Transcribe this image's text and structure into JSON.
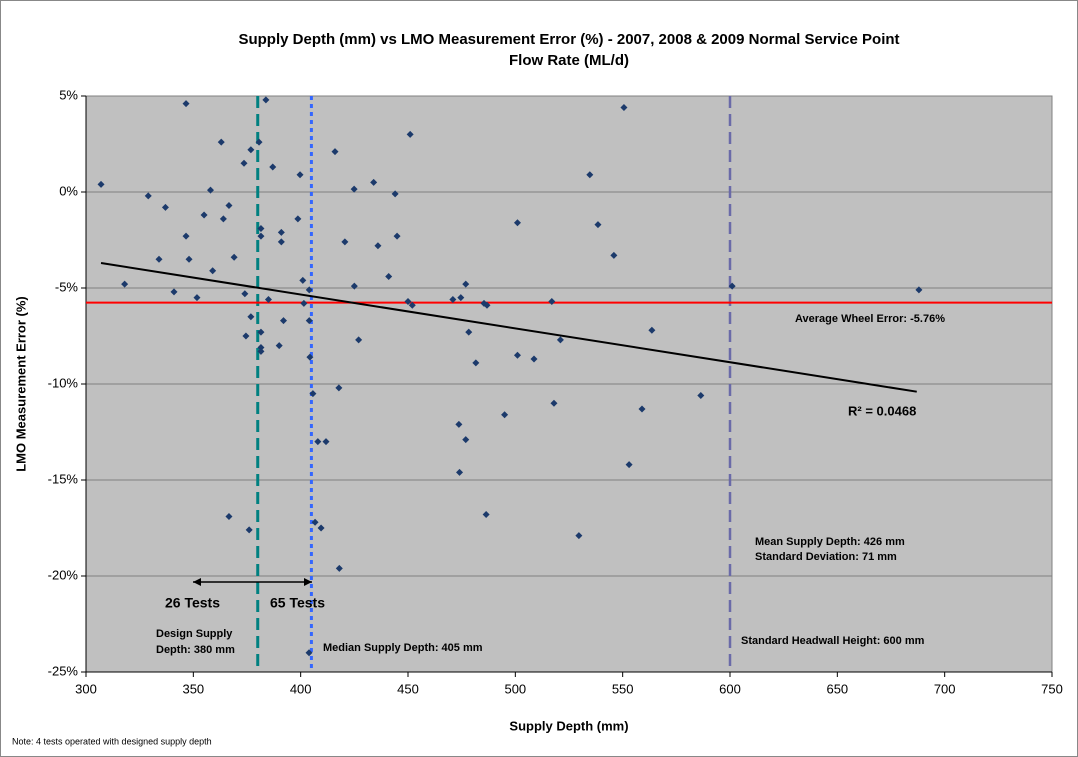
{
  "chart_data": {
    "type": "scatter",
    "title": [
      "Supply Depth (mm) vs LMO Measurement Error (%) - 2007, 2008 & 2009 Normal Service Point",
      "Flow Rate (ML/d)"
    ],
    "x_label": "Supply Depth (mm)",
    "y_label": "LMO Measurement Error (%)",
    "xlim": [
      300,
      750
    ],
    "xticks": [
      300,
      350,
      400,
      450,
      500,
      550,
      600,
      650,
      700,
      750
    ],
    "ylim": [
      -25,
      5
    ],
    "yticks": [
      {
        "value": -25,
        "label": "-25%"
      },
      {
        "value": -20,
        "label": "-20%"
      },
      {
        "value": -15,
        "label": "-15%"
      },
      {
        "value": -10,
        "label": "-10%"
      },
      {
        "value": -5,
        "label": "-5%"
      },
      {
        "value": 0,
        "label": "0%"
      },
      {
        "value": 5,
        "label": "5%"
      }
    ],
    "grid": true,
    "series": [
      {
        "color": "#1c3a6b",
        "x": [
          307,
          318,
          329,
          337,
          334,
          341,
          346.6,
          346.6,
          348,
          351.7,
          355,
          358,
          359,
          363,
          364,
          366.6,
          369,
          366.6,
          373.6,
          374,
          374.5,
          376.8,
          376.8,
          376,
          380.6,
          381.5,
          381.5,
          381.5,
          381.5,
          381.5,
          383.8,
          385,
          387,
          390,
          391,
          391,
          392,
          398.7,
          399.7,
          401,
          401.5,
          404,
          404,
          404.3,
          405.7,
          403.9,
          406.7,
          409.5,
          408,
          411.8,
          416,
          417.8,
          418,
          420.6,
          424.9,
          425,
          427,
          434,
          436,
          441,
          444,
          444.9,
          450,
          451,
          452,
          473.7,
          474,
          470.9,
          474.6,
          476.9,
          476.9,
          478.3,
          481.6,
          485.4,
          486.8,
          486.4,
          495,
          501,
          501,
          508.7,
          517,
          518,
          521,
          529.6,
          534.7,
          538.5,
          545.9,
          550.6,
          553,
          559,
          563.6,
          586.4,
          601,
          688
        ],
        "y": [
          0.4,
          -4.8,
          -0.2,
          -0.8,
          -3.5,
          -5.2,
          4.6,
          -2.3,
          -3.5,
          -5.5,
          -1.2,
          0.1,
          -4.1,
          2.6,
          -1.4,
          -0.7,
          -3.4,
          -16.9,
          1.5,
          -5.3,
          -7.5,
          2.2,
          -6.5,
          -17.6,
          2.6,
          -1.9,
          -2.3,
          -7.3,
          -8.1,
          -8.3,
          4.8,
          -5.6,
          1.3,
          -8.0,
          -2.1,
          -2.6,
          -6.7,
          -1.4,
          0.9,
          -4.6,
          -5.8,
          -5.1,
          -6.7,
          -8.6,
          -10.5,
          -24.0,
          -17.2,
          -17.5,
          -13.0,
          -13.0,
          2.1,
          -10.2,
          -19.6,
          -2.6,
          0.15,
          -4.9,
          -7.7,
          0.5,
          -2.8,
          -4.4,
          -0.1,
          -2.3,
          -5.7,
          3.0,
          -5.9,
          -12.1,
          -14.6,
          -5.6,
          -5.5,
          -4.8,
          -12.9,
          -7.3,
          -8.9,
          -5.8,
          -5.9,
          -16.8,
          -11.6,
          -1.6,
          -8.5,
          -8.7,
          -5.7,
          -11.0,
          -7.7,
          -17.9,
          0.9,
          -1.7,
          -3.3,
          4.4,
          -14.2,
          -11.3,
          -7.2,
          -10.6,
          -4.9,
          -5.1
        ]
      }
    ],
    "trendline": {
      "x": [
        307,
        687
      ],
      "y": [
        -3.7,
        -10.4
      ],
      "color": "#000000",
      "label": "R² = 0.0468"
    },
    "reference_lines": [
      {
        "axis": "x",
        "value": 380,
        "color": "#008080"
      },
      {
        "axis": "x",
        "value": 405,
        "color": "#3366ff"
      },
      {
        "axis": "x",
        "value": 600,
        "color": "#6a6aa8"
      },
      {
        "axis": "y",
        "value": -5.76,
        "color": "#ff0000"
      }
    ],
    "annotations": [
      "Average Wheel Error: -5.76%",
      "Mean Supply Depth: 426 mm",
      "Standard Deviation: 71 mm",
      "Standard Headwall Height: 600 mm",
      "Median Supply Depth: 405 mm",
      "Design Supply",
      "Depth: 380 mm",
      "26 Tests",
      "65 Tests"
    ],
    "note": "Note: 4 tests operated with designed supply depth"
  }
}
